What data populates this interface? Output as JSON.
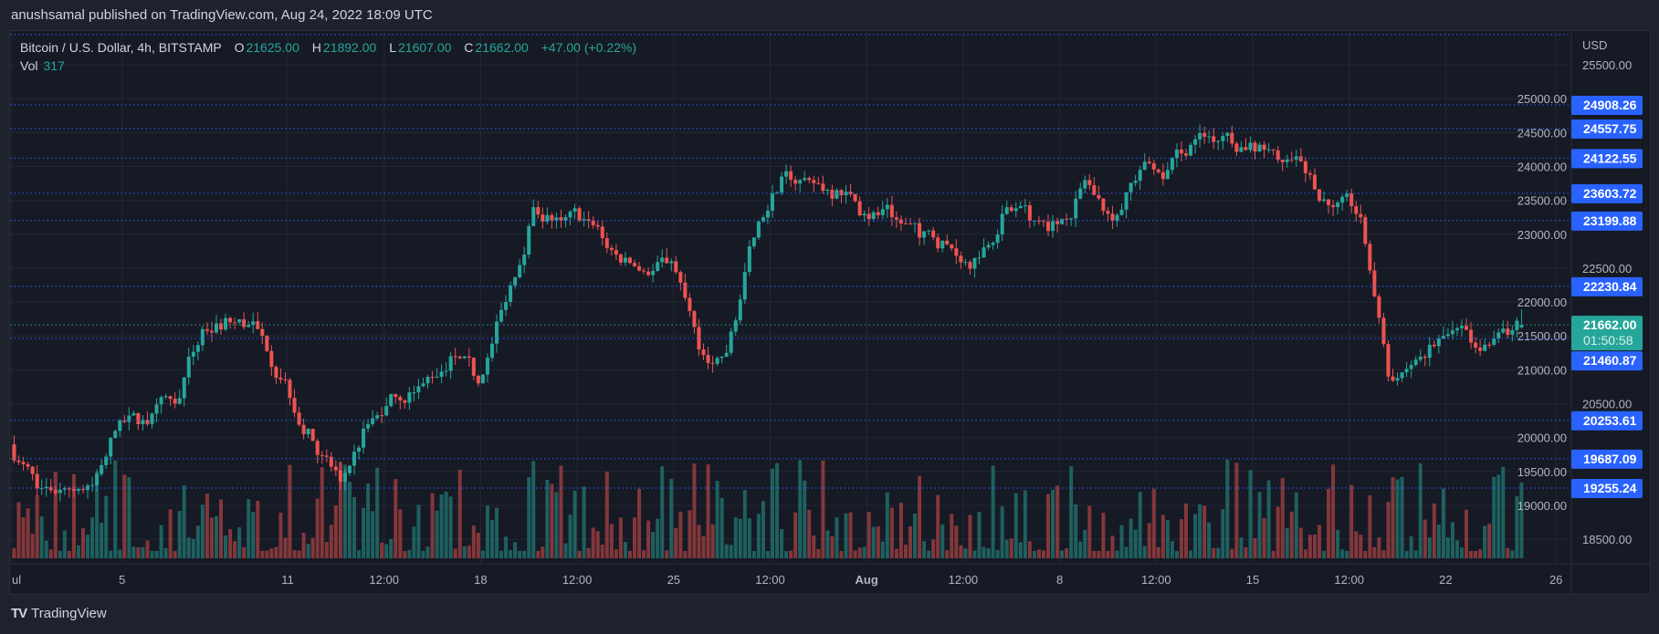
{
  "header": {
    "published": "anushsamal published on TradingView.com, Aug 24, 2022 18:09 UTC"
  },
  "legend": {
    "symbol": "Bitcoin / U.S. Dollar, 4h, BITSTAMP",
    "o_label": "O",
    "open": "21625.00",
    "h_label": "H",
    "high": "21892.00",
    "l_label": "L",
    "low": "21607.00",
    "c_label": "C",
    "close": "21662.00",
    "change": "+47.00 (+0.22%)",
    "vol_label": "Vol",
    "vol_value": "317"
  },
  "price_axis": {
    "currency": "USD"
  },
  "footer": {
    "brand": "TradingView",
    "logo": "TV"
  },
  "colors": {
    "up": "#26a69a",
    "down": "#ef5350",
    "level": "#2962ff",
    "background": "#161a25"
  },
  "chart_data": {
    "type": "candlestick",
    "interval": "4h",
    "ylim": [
      18300,
      25800
    ],
    "y_ticks": [
      "18500.00",
      "19000.00",
      "19500.00",
      "20000.00",
      "20500.00",
      "21000.00",
      "21500.00",
      "22000.00",
      "22500.00",
      "23000.00",
      "23500.00",
      "24000.00",
      "24500.00",
      "25000.00",
      "25500.00"
    ],
    "x_ticks": [
      {
        "label": "ul",
        "day": "2022-07-01"
      },
      {
        "label": "5",
        "day": "2022-07-05"
      },
      {
        "label": "11",
        "day": "2022-07-11"
      },
      {
        "label": "12:00",
        "day": "2022-07-14 12:00"
      },
      {
        "label": "18",
        "day": "2022-07-18"
      },
      {
        "label": "12:00",
        "day": "2022-07-21 12:00"
      },
      {
        "label": "25",
        "day": "2022-07-25"
      },
      {
        "label": "12:00",
        "day": "2022-07-28 12:00"
      },
      {
        "label": "Aug",
        "day": "2022-08-01",
        "bold": true
      },
      {
        "label": "12:00",
        "day": "2022-08-04 12:00"
      },
      {
        "label": "8",
        "day": "2022-08-08"
      },
      {
        "label": "12:00",
        "day": "2022-08-11 12:00"
      },
      {
        "label": "15",
        "day": "2022-08-15"
      },
      {
        "label": "12:00",
        "day": "2022-08-18 12:00"
      },
      {
        "label": "22",
        "day": "2022-08-22"
      },
      {
        "label": "26",
        "day": "2022-08-26"
      }
    ],
    "start_date": "2022-07-01",
    "first_open": 19900,
    "daily_closes": [
      19250,
      19250,
      19300,
      20250,
      20200,
      20500,
      21600,
      21700,
      21600,
      20850,
      19950,
      19350,
      20200,
      20600,
      20800,
      21200,
      20800,
      22000,
      23400,
      23200,
      23200,
      22700,
      22450,
      22600,
      21300,
      21250,
      22950,
      23850,
      23800,
      23650,
      23300,
      23250,
      22950,
      22850,
      22650,
      23300,
      23200,
      23150,
      23800,
      23200,
      23950,
      23950,
      24400,
      24450,
      24350,
      24100,
      23900,
      23400,
      23250,
      20900,
      21150,
      21500,
      21400,
      21550,
      21662
    ],
    "last_candle": {
      "open": 21625,
      "high": 21892,
      "low": 21607,
      "close": 21662
    },
    "current_price": {
      "value": "21662.00",
      "countdown": "01:50:58"
    },
    "levels": [
      "24908.26",
      "24557.75",
      "24122.55",
      "23603.72",
      "23199.88",
      "22230.84",
      "21460.87",
      "20253.61",
      "19687.09",
      "19255.24"
    ]
  }
}
